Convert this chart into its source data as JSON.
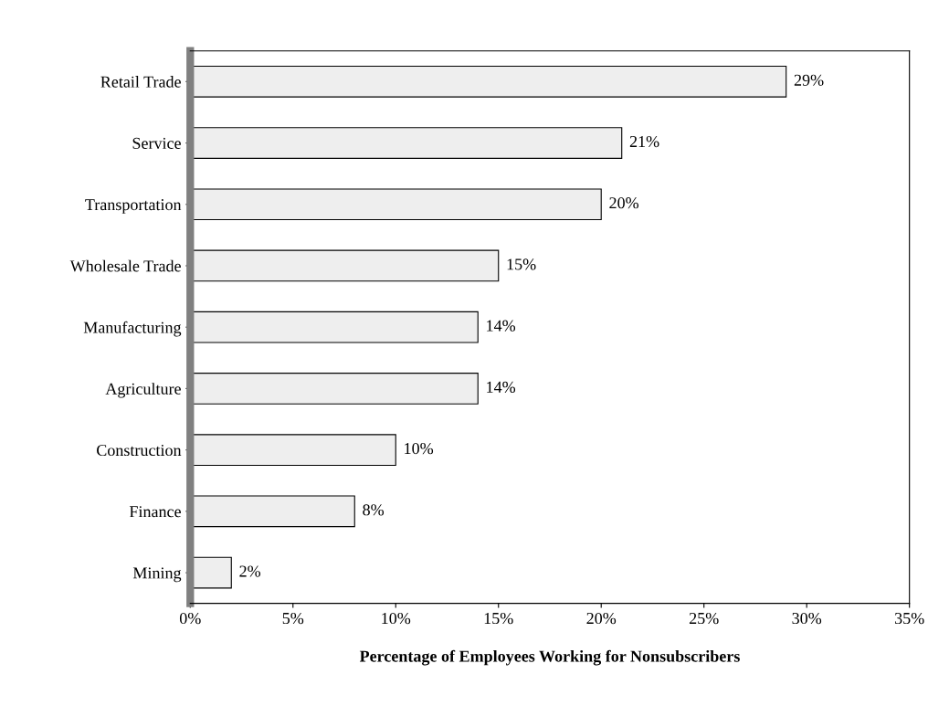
{
  "chart_data": {
    "type": "bar",
    "orientation": "horizontal",
    "xlabel": "Percentage of Employees Working for Nonsubscribers",
    "categories": [
      "Retail Trade",
      "Service",
      "Transportation",
      "Wholesale Trade",
      "Manufacturing",
      "Agriculture",
      "Construction",
      "Finance",
      "Mining"
    ],
    "values": [
      29,
      21,
      20,
      15,
      14,
      14,
      10,
      8,
      2
    ],
    "value_labels": [
      "29%",
      "21%",
      "20%",
      "15%",
      "14%",
      "14%",
      "10%",
      "8%",
      "2%"
    ],
    "color": "#eeeeee",
    "xlim": [
      0,
      35
    ],
    "xticks": [
      {
        "value": 0,
        "label": "0%"
      },
      {
        "value": 5,
        "label": "5%"
      },
      {
        "value": 10,
        "label": "10%"
      },
      {
        "value": 15,
        "label": "15%"
      },
      {
        "value": 20,
        "label": "20%"
      },
      {
        "value": 25,
        "label": "25%"
      },
      {
        "value": 30,
        "label": "30%"
      },
      {
        "value": 35,
        "label": "35%"
      }
    ],
    "grid": false,
    "legend": false
  }
}
